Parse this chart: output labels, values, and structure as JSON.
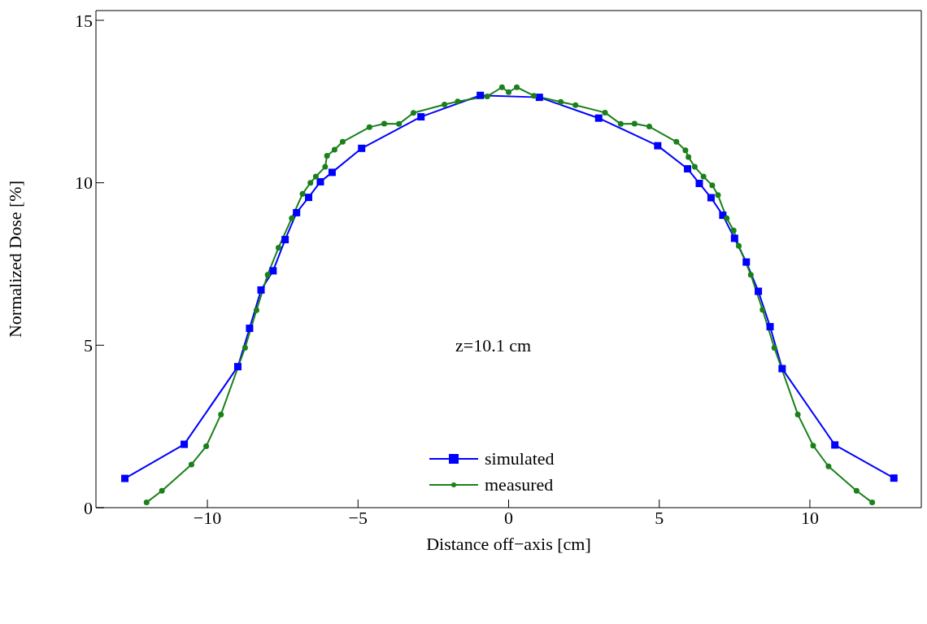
{
  "chart_data": {
    "type": "line",
    "xlabel": "Distance off−axis [cm]",
    "ylabel": "Normalized Dose [%]",
    "xlim": [
      -13.7,
      13.7
    ],
    "ylim": [
      0,
      15.3
    ],
    "xticks": [
      {
        "value": -10,
        "label": "−10"
      },
      {
        "value": -5,
        "label": "−5"
      },
      0,
      5,
      10
    ],
    "yticks": [
      0,
      5,
      10,
      15
    ],
    "legend": "bottom",
    "annotations": [
      "z=10.1 cm"
    ],
    "series": [
      {
        "name": "simulated",
        "color": "#0000ff",
        "marker": "square",
        "x": [
          -12.74,
          -10.77,
          -8.99,
          -8.6,
          -8.22,
          -7.82,
          -7.42,
          -7.04,
          -6.64,
          -6.25,
          -5.86,
          -4.88,
          -2.91,
          -0.94,
          1.02,
          2.99,
          4.95,
          5.94,
          6.33,
          6.72,
          7.11,
          7.5,
          7.89,
          8.29,
          8.68,
          9.08,
          10.83,
          12.79
        ],
        "values": [
          0.9,
          1.95,
          4.34,
          5.52,
          6.7,
          7.29,
          8.25,
          9.08,
          9.55,
          10.03,
          10.32,
          11.06,
          12.03,
          12.69,
          12.63,
          11.99,
          11.14,
          10.43,
          9.98,
          9.54,
          9.0,
          8.29,
          7.56,
          6.66,
          5.57,
          4.28,
          1.93,
          0.91
        ]
      },
      {
        "name": "measured",
        "color": "#1a801a",
        "marker": "circle",
        "x": [
          -12.02,
          -11.51,
          -10.53,
          -10.04,
          -9.55,
          -8.75,
          -8.37,
          -8.0,
          -7.64,
          -7.2,
          -6.84,
          -6.58,
          -6.4,
          -6.09,
          -6.03,
          -5.78,
          -5.51,
          -4.62,
          -4.13,
          -3.64,
          -3.16,
          -2.13,
          -1.69,
          -0.71,
          -0.22,
          0,
          0.27,
          0.84,
          1.73,
          2.22,
          3.2,
          3.72,
          4.18,
          4.67,
          5.57,
          5.87,
          5.97,
          6.18,
          6.47,
          6.76,
          6.95,
          7.24,
          7.47,
          7.64,
          8.04,
          8.43,
          8.82,
          9.6,
          10.11,
          10.62,
          11.55,
          12.07
        ],
        "values": [
          0.16,
          0.52,
          1.33,
          1.89,
          2.87,
          4.92,
          6.08,
          7.17,
          8.0,
          8.91,
          9.66,
          10.0,
          10.19,
          10.49,
          10.83,
          11.02,
          11.26,
          11.71,
          11.82,
          11.81,
          12.15,
          12.41,
          12.5,
          12.66,
          12.94,
          12.79,
          12.94,
          12.68,
          12.49,
          12.39,
          12.16,
          11.81,
          11.82,
          11.73,
          11.26,
          11.0,
          10.79,
          10.49,
          10.19,
          9.92,
          9.62,
          8.91,
          8.53,
          8.06,
          7.17,
          6.09,
          4.92,
          2.87,
          1.91,
          1.27,
          0.52,
          0.16
        ]
      }
    ]
  }
}
